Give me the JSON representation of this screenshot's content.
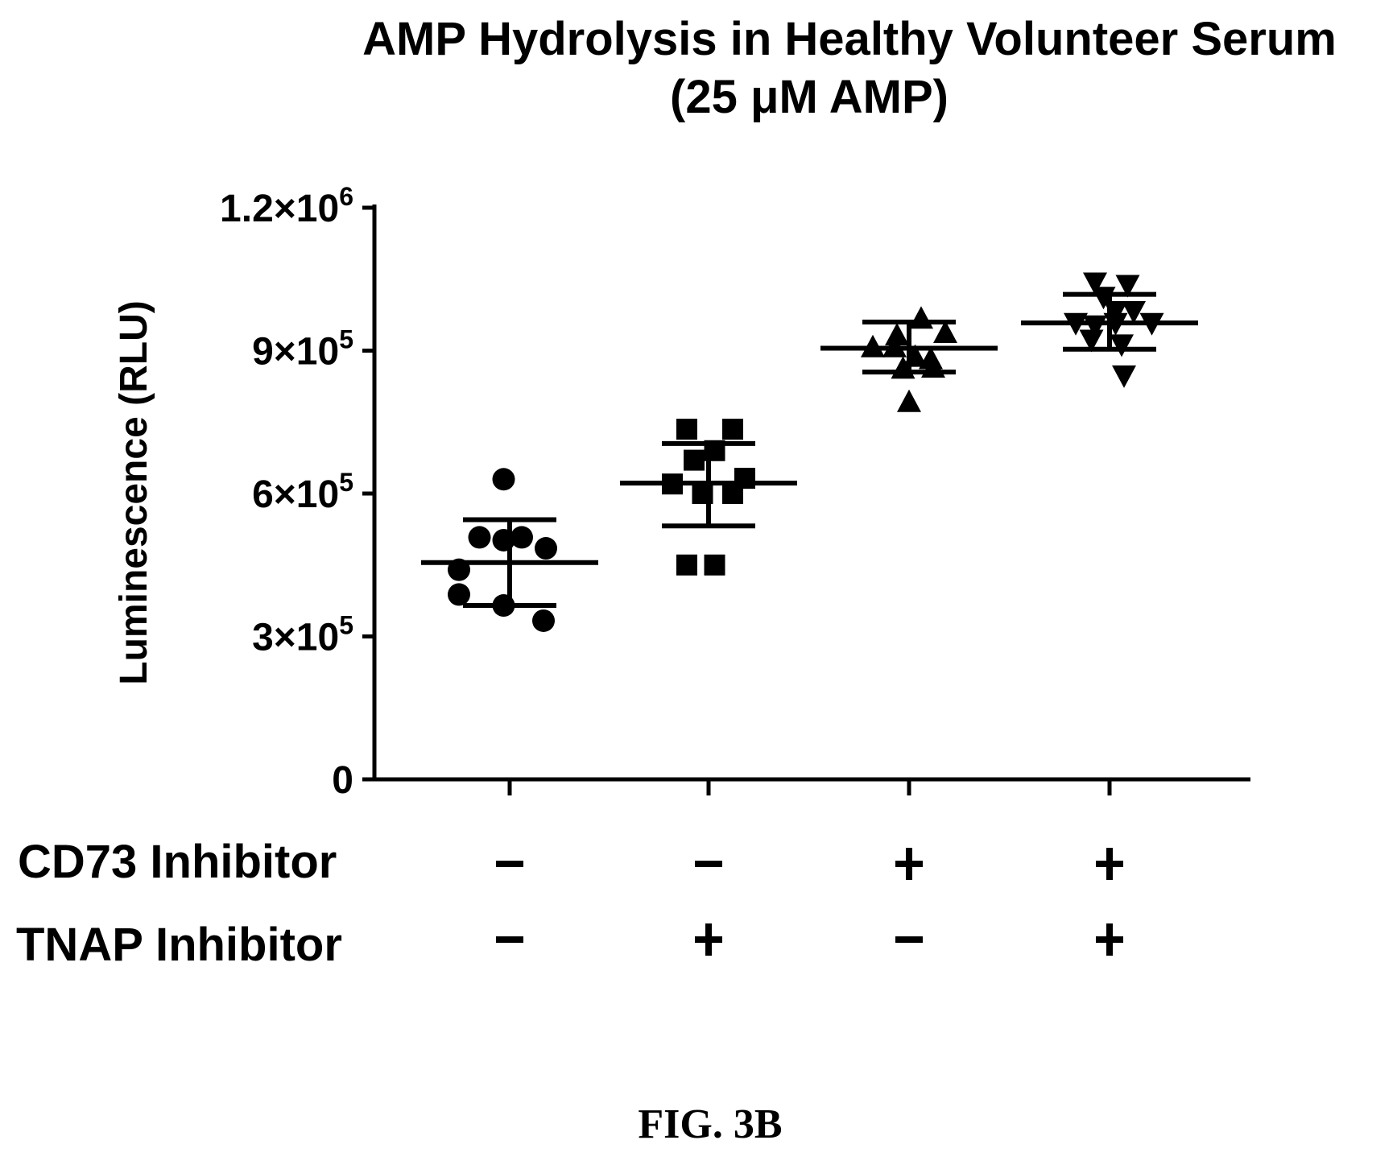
{
  "chart_data": {
    "type": "scatter",
    "title_line1": "AMP Hydrolysis in Healthy Volunteer Serum",
    "title_line2": "(25 μM AMP)",
    "ylabel": "Luminescence (RLU)",
    "xlabel": "",
    "ylim": [
      0,
      1200000
    ],
    "yticks": [
      {
        "value": 0,
        "label": "0",
        "exp": ""
      },
      {
        "value": 300000,
        "label": "3×10",
        "exp": "5"
      },
      {
        "value": 600000,
        "label": "6×10",
        "exp": "5"
      },
      {
        "value": 900000,
        "label": "9×10",
        "exp": "5"
      },
      {
        "value": 1200000,
        "label": "1.2×10",
        "exp": "6"
      }
    ],
    "grid": false,
    "legend": "none",
    "row_labels": [
      "CD73 Inhibitor",
      "TNAP Inhibitor"
    ],
    "series": [
      {
        "marker": "circle",
        "cd73": "-",
        "tnap": "-",
        "mean": 455000,
        "sd_upper": 545000,
        "sd_lower": 365000,
        "points": [
          {
            "dx": -0.05,
            "y": 630000
          },
          {
            "dx": -0.25,
            "y": 508000
          },
          {
            "dx": -0.05,
            "y": 502000
          },
          {
            "dx": 0.1,
            "y": 508000
          },
          {
            "dx": 0.3,
            "y": 485000
          },
          {
            "dx": -0.42,
            "y": 440000
          },
          {
            "dx": -0.42,
            "y": 388000
          },
          {
            "dx": -0.05,
            "y": 365000
          },
          {
            "dx": 0.28,
            "y": 333000
          }
        ]
      },
      {
        "marker": "square",
        "cd73": "-",
        "tnap": "+",
        "mean": 622000,
        "sd_upper": 705000,
        "sd_lower": 532000,
        "points": [
          {
            "dx": -0.18,
            "y": 735000
          },
          {
            "dx": 0.2,
            "y": 735000
          },
          {
            "dx": 0.05,
            "y": 690000
          },
          {
            "dx": -0.12,
            "y": 670000
          },
          {
            "dx": 0.3,
            "y": 632000
          },
          {
            "dx": -0.3,
            "y": 620000
          },
          {
            "dx": -0.05,
            "y": 600000
          },
          {
            "dx": 0.2,
            "y": 600000
          },
          {
            "dx": -0.18,
            "y": 450000
          },
          {
            "dx": 0.05,
            "y": 450000
          }
        ]
      },
      {
        "marker": "triangle-up",
        "cd73": "+",
        "tnap": "-",
        "mean": 905000,
        "sd_upper": 960000,
        "sd_lower": 855000,
        "points": [
          {
            "dx": 0.1,
            "y": 965000
          },
          {
            "dx": 0.3,
            "y": 935000
          },
          {
            "dx": -0.1,
            "y": 930000
          },
          {
            "dx": -0.3,
            "y": 905000
          },
          {
            "dx": -0.12,
            "y": 905000
          },
          {
            "dx": 0.05,
            "y": 885000
          },
          {
            "dx": 0.18,
            "y": 880000
          },
          {
            "dx": -0.05,
            "y": 860000
          },
          {
            "dx": 0.2,
            "y": 862000
          },
          {
            "dx": 0.0,
            "y": 790000
          }
        ]
      },
      {
        "marker": "triangle-down",
        "cd73": "+",
        "tnap": "+",
        "mean": 958000,
        "sd_upper": 1018000,
        "sd_lower": 903000,
        "points": [
          {
            "dx": -0.12,
            "y": 1045000
          },
          {
            "dx": 0.15,
            "y": 1040000
          },
          {
            "dx": -0.05,
            "y": 1015000
          },
          {
            "dx": 0.05,
            "y": 985000
          },
          {
            "dx": 0.2,
            "y": 985000
          },
          {
            "dx": -0.28,
            "y": 960000
          },
          {
            "dx": 0.05,
            "y": 960000
          },
          {
            "dx": -0.12,
            "y": 955000
          },
          {
            "dx": 0.35,
            "y": 960000
          },
          {
            "dx": -0.15,
            "y": 925000
          },
          {
            "dx": 0.1,
            "y": 915000
          },
          {
            "dx": 0.12,
            "y": 850000
          }
        ]
      }
    ]
  },
  "figure_label": "FIG. 3B"
}
